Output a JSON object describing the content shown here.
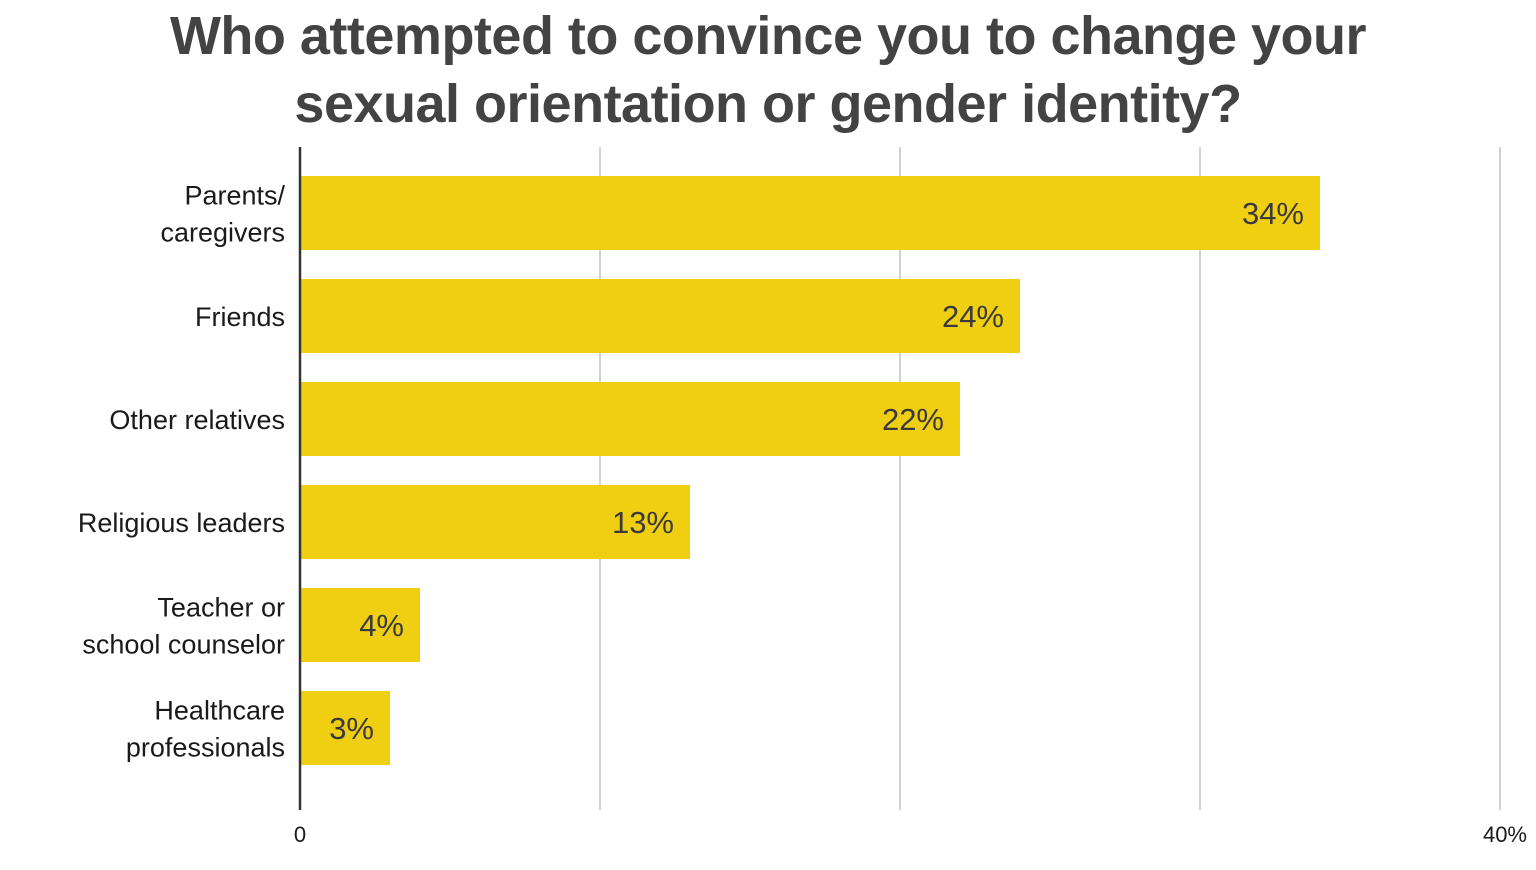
{
  "chart_data": {
    "type": "bar",
    "orientation": "horizontal",
    "title": "Who attempted to convince you to change your sexual orientation or gender identity?",
    "title_lines": [
      "Who attempted to convince you to change your",
      "sexual orientation or gender identity?"
    ],
    "categories": [
      "Parents/\ncaregivers",
      "Friends",
      "Other relatives",
      "Religious leaders",
      "Teacher or\nschool counselor",
      "Healthcare\nprofessionals"
    ],
    "values": [
      34,
      24,
      22,
      13,
      4,
      3
    ],
    "value_labels": [
      "34%",
      "24%",
      "22%",
      "13%",
      "4%",
      "3%"
    ],
    "xlim": [
      0,
      40
    ],
    "x_ticks": [
      0,
      10,
      20,
      30,
      40
    ],
    "x_tick_labels": [
      "0",
      "",
      "",
      "",
      "40%"
    ],
    "grid": true,
    "legend": "none",
    "bar_color": "#f0cf12",
    "grid_color": "#b4b4b4",
    "axis_color": "#333333"
  }
}
